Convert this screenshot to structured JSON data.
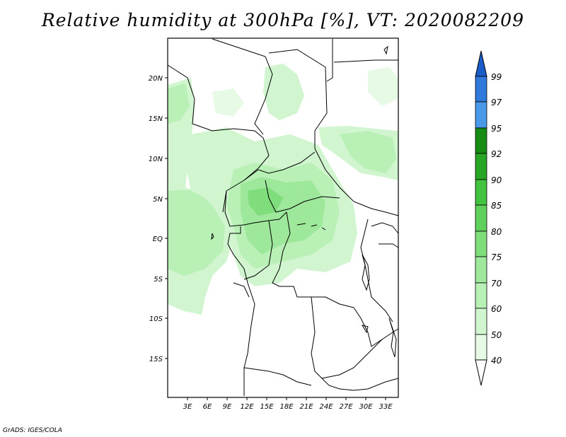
{
  "title": "Relative humidity at 300hPa [%], VT: 2020082209",
  "credit": "GrADS: IGES/COLA",
  "map": {
    "lat_ticks": [
      "20N",
      "15N",
      "10N",
      "5N",
      "EQ",
      "5S",
      "10S",
      "15S"
    ],
    "lon_ticks": [
      "3E",
      "6E",
      "9E",
      "12E",
      "15E",
      "18E",
      "21E",
      "24E",
      "27E",
      "30E",
      "33E"
    ]
  },
  "colorbar": {
    "labels": [
      "40",
      "50",
      "60",
      "70",
      "75",
      "80",
      "85",
      "90",
      "92",
      "95",
      "97",
      "99"
    ],
    "colors": {
      "40-50": "#e6fae6",
      "50-60": "#d0f5cf",
      "60-70": "#b8f0b6",
      "70-75": "#9ee89b",
      "75-80": "#7fdd7b",
      "80-85": "#5fd05b",
      "85-90": "#43c23f",
      "90-92": "#2aa626",
      "92-95": "#178c14",
      "95-97": "#4a98e8",
      "97-99": "#2f78dc",
      "99+": "#1a5cc8"
    }
  }
}
